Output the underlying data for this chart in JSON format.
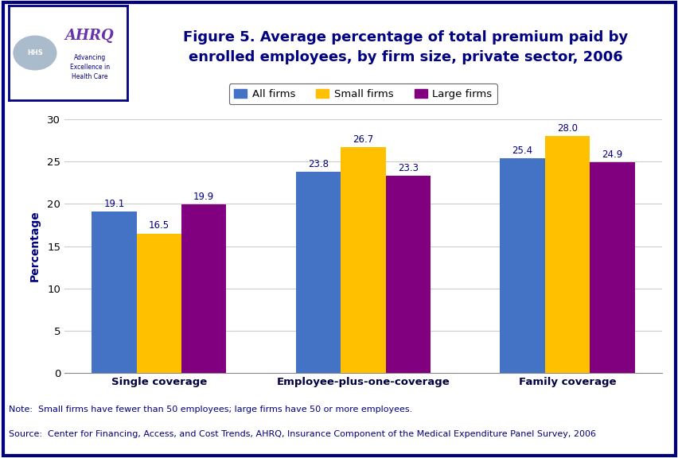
{
  "categories": [
    "Single coverage",
    "Employee-plus-one-coverage",
    "Family coverage"
  ],
  "series": [
    {
      "label": "All firms",
      "color": "#4472C4",
      "values": [
        19.1,
        23.8,
        25.4
      ]
    },
    {
      "label": "Small firms",
      "color": "#FFC000",
      "values": [
        16.5,
        26.7,
        28.0
      ]
    },
    {
      "label": "Large firms",
      "color": "#800080",
      "values": [
        19.9,
        23.3,
        24.9
      ]
    }
  ],
  "ylabel": "Percentage",
  "ylim": [
    0,
    30
  ],
  "yticks": [
    0,
    5,
    10,
    15,
    20,
    25,
    30
  ],
  "title_line1": "Figure 5. Average percentage of total premium paid by",
  "title_line2": "enrolled employees, by firm size, private sector, 2006",
  "note": "Note:  Small firms have fewer than 50 employees; large firms have 50 or more employees.",
  "source": "Source:  Center for Financing, Access, and Cost Trends, AHRQ, Insurance Component of the Medical Expenditure Panel Survey, 2006",
  "bg_color": "#FFFFFF",
  "outer_border_color": "#000080",
  "header_bg": "#C8D8F0",
  "blue_line_color": "#000080",
  "bar_width": 0.22,
  "value_fontsize": 8.5,
  "axis_label_color": "#000080",
  "title_color": "#000080",
  "note_color": "#000080",
  "tick_label_color": "#000080",
  "xtick_label_color": "#000040"
}
